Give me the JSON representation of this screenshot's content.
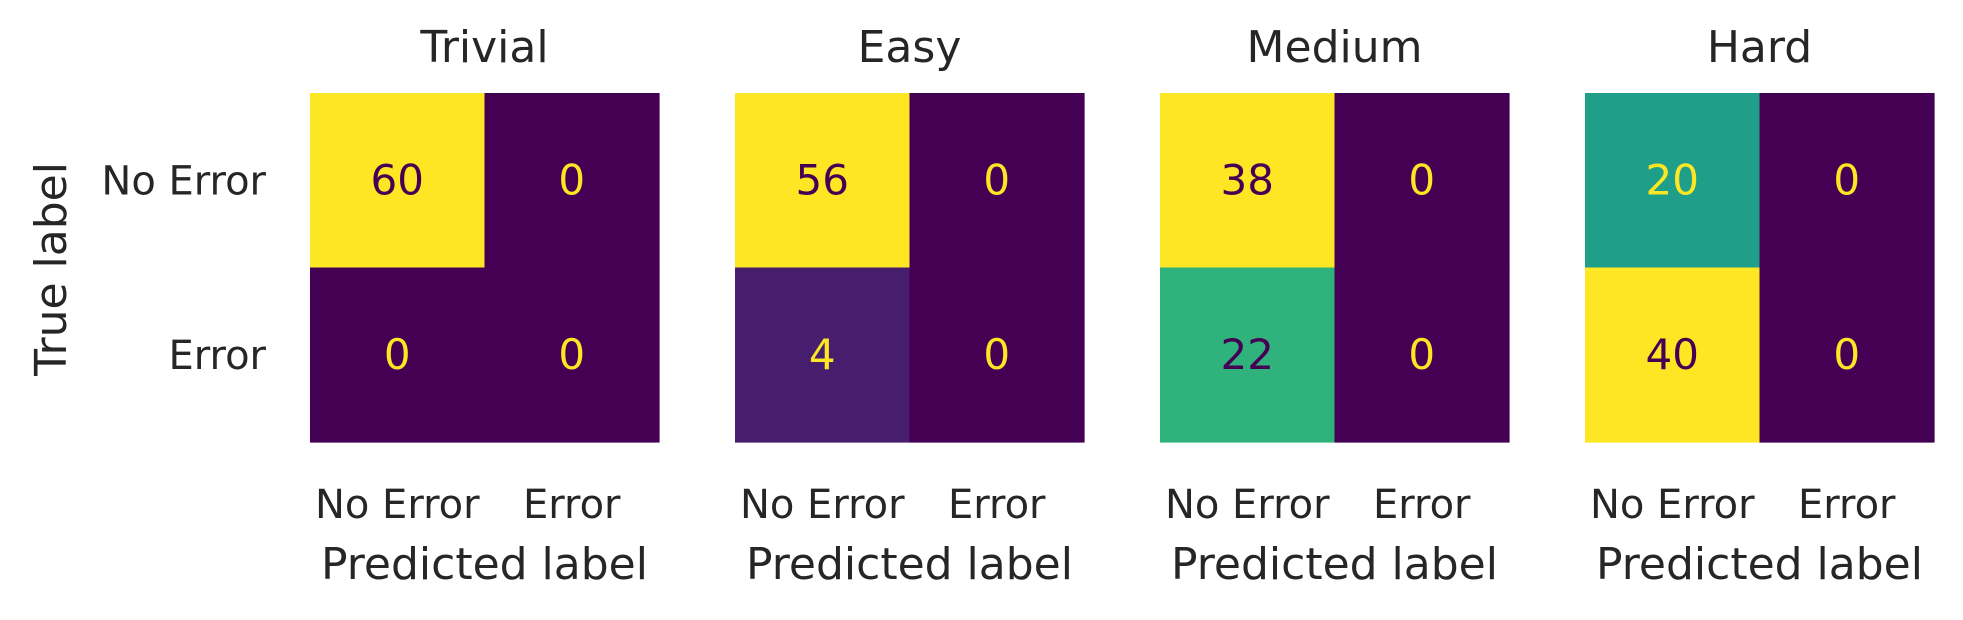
{
  "chart_data": {
    "type": "heatmap",
    "colormap": "viridis",
    "row_axis_label": "True label",
    "col_axis_label": "Predicted label",
    "row_labels": [
      "No Error",
      "Error"
    ],
    "col_labels": [
      "No Error",
      "Error"
    ],
    "panels": [
      {
        "title": "Trivial",
        "matrix": [
          [
            60,
            0
          ],
          [
            0,
            0
          ]
        ]
      },
      {
        "title": "Easy",
        "matrix": [
          [
            56,
            0
          ],
          [
            4,
            0
          ]
        ]
      },
      {
        "title": "Medium",
        "matrix": [
          [
            38,
            0
          ],
          [
            22,
            0
          ]
        ]
      },
      {
        "title": "Hard",
        "matrix": [
          [
            20,
            0
          ],
          [
            40,
            0
          ]
        ]
      }
    ],
    "colors": {
      "cmap_low": "#440154",
      "cmap_high": "#fde725",
      "text_on_dark": "#fde725",
      "text_on_light": "#440154"
    }
  }
}
